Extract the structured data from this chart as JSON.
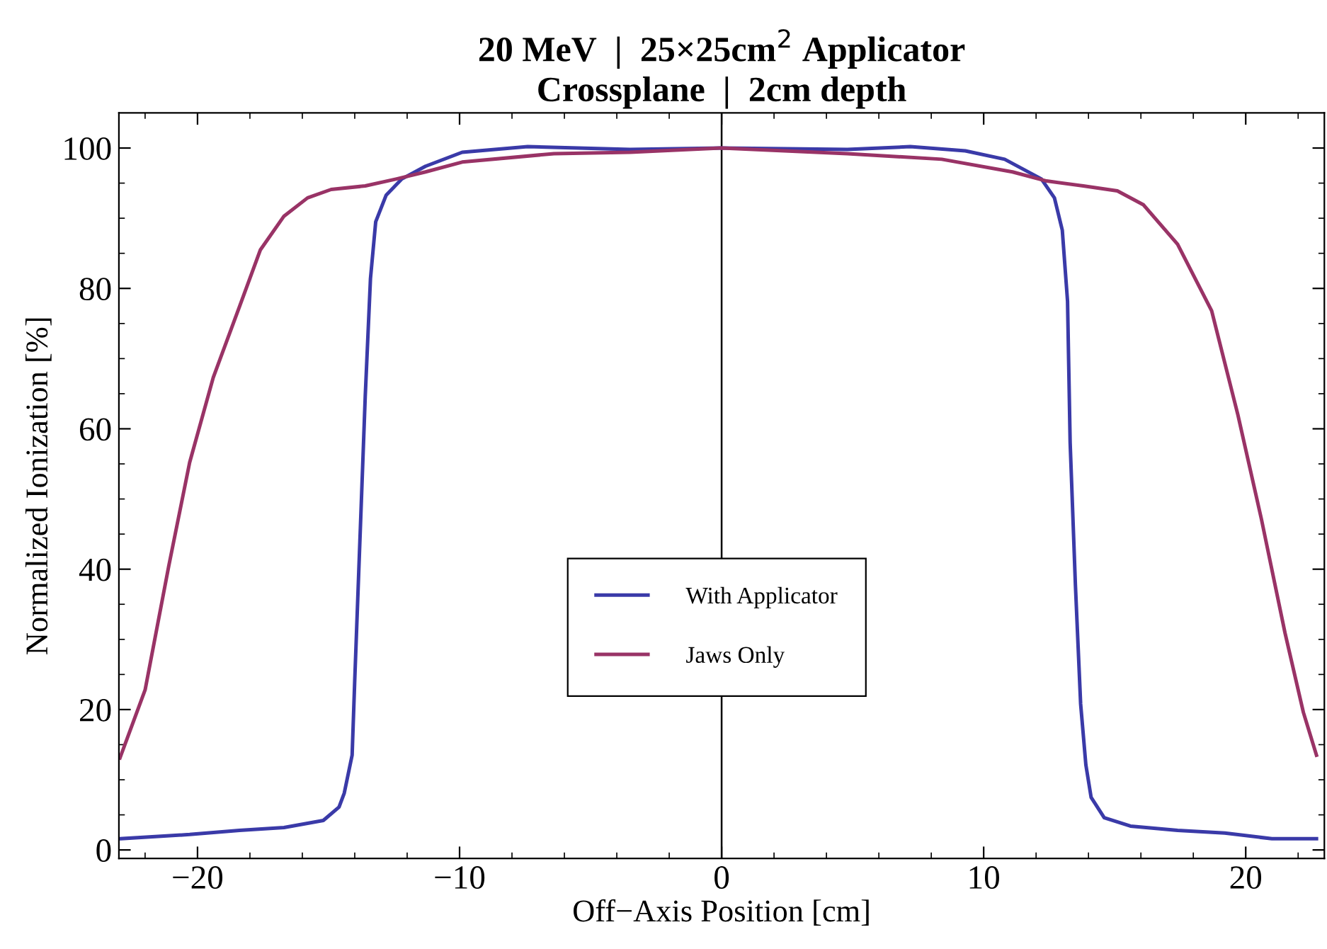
{
  "chart_data": {
    "type": "line",
    "title": "20 MeV  |  25×25cm$^{2}$ Applicator\nCrossplane  |  2cm depth",
    "xlabel": "Off−Axis Position [cm]",
    "ylabel": "Normalized Ionization [%]",
    "xlim": [
      -23,
      23
    ],
    "ylim": [
      -1.2,
      105
    ],
    "xticks": [
      {
        "value": -22,
        "label": null
      },
      {
        "value": -20,
        "label": "−20"
      },
      {
        "value": -18,
        "label": null
      },
      {
        "value": -16,
        "label": null
      },
      {
        "value": -14,
        "label": null
      },
      {
        "value": -12,
        "label": null
      },
      {
        "value": -10,
        "label": "−10"
      },
      {
        "value": -8,
        "label": null
      },
      {
        "value": -6,
        "label": null
      },
      {
        "value": -4,
        "label": null
      },
      {
        "value": -2,
        "label": null
      },
      0,
      {
        "value": 2,
        "label": null
      },
      {
        "value": 4,
        "label": null
      },
      {
        "value": 6,
        "label": null
      },
      {
        "value": 8,
        "label": null
      },
      10,
      {
        "value": 12,
        "label": null
      },
      {
        "value": 14,
        "label": null
      },
      {
        "value": 16,
        "label": null
      },
      {
        "value": 18,
        "label": null
      },
      20,
      {
        "value": 22,
        "label": null
      }
    ],
    "yticks": [
      0,
      {
        "value": 5,
        "label": null
      },
      {
        "value": 10,
        "label": null
      },
      {
        "value": 15,
        "label": null
      },
      20,
      {
        "value": 25,
        "label": null
      },
      {
        "value": 30,
        "label": null
      },
      {
        "value": 35,
        "label": null
      },
      40,
      {
        "value": 45,
        "label": null
      },
      {
        "value": 50,
        "label": null
      },
      {
        "value": 55,
        "label": null
      },
      60,
      {
        "value": 65,
        "label": null
      },
      {
        "value": 70,
        "label": null
      },
      {
        "value": 75,
        "label": null
      },
      80,
      {
        "value": 85,
        "label": null
      },
      {
        "value": 90,
        "label": null
      },
      {
        "value": 95,
        "label": null
      },
      100
    ],
    "ref_lines": [
      {
        "axis": "x",
        "value": 0,
        "color": "#000000"
      }
    ],
    "grid": false,
    "legend": "center",
    "marker": "none",
    "line_style": "solid",
    "series": [
      {
        "name": "With Applicator",
        "color": "#3a3aa8",
        "x": [
          -22.96,
          -20.3,
          -18.4,
          -16.7,
          -15.2,
          -14.6,
          -14.4,
          -14.1,
          -14.0,
          -13.8,
          -13.6,
          -13.4,
          -13.2,
          -12.8,
          -12.2,
          -11.3,
          -9.9,
          -7.4,
          -3.5,
          0,
          4.8,
          7.2,
          9.3,
          10.8,
          12.2,
          12.7,
          13.0,
          13.2,
          13.3,
          13.5,
          13.7,
          13.9,
          14.1,
          14.6,
          15.6,
          17.4,
          19.2,
          21.0,
          22.7
        ],
        "values": [
          1.6,
          2.2,
          2.8,
          3.2,
          4.2,
          6.1,
          8.1,
          13.5,
          24.2,
          44.4,
          64.6,
          81.4,
          89.5,
          93.3,
          95.6,
          97.4,
          99.4,
          100.2,
          99.8,
          100,
          99.8,
          100.2,
          99.6,
          98.4,
          95.6,
          92.9,
          88.3,
          78.2,
          58.0,
          37.8,
          20.8,
          12.1,
          7.5,
          4.6,
          3.4,
          2.8,
          2.4,
          1.6,
          1.6
        ]
      },
      {
        "name": "Jaws Only",
        "color": "#993366",
        "x": [
          -22.96,
          -22.0,
          -21.1,
          -20.3,
          -19.4,
          -18.4,
          -17.6,
          -16.7,
          -15.8,
          -14.9,
          -13.6,
          -12.4,
          -11.3,
          -9.9,
          -6.4,
          -3.5,
          0,
          4.8,
          8.4,
          11.1,
          12.4,
          13.8,
          15.1,
          16.1,
          17.4,
          18.7,
          19.7,
          20.6,
          21.5,
          22.2,
          22.7
        ],
        "values": [
          13.1,
          22.8,
          40.4,
          55.2,
          67.3,
          77.4,
          85.5,
          90.3,
          92.9,
          94.1,
          94.6,
          95.6,
          96.6,
          98.0,
          99.2,
          99.4,
          100,
          99.2,
          98.4,
          96.6,
          95.3,
          94.6,
          93.9,
          91.9,
          86.3,
          76.8,
          62.0,
          47.1,
          30.9,
          19.6,
          13.5
        ]
      }
    ]
  }
}
